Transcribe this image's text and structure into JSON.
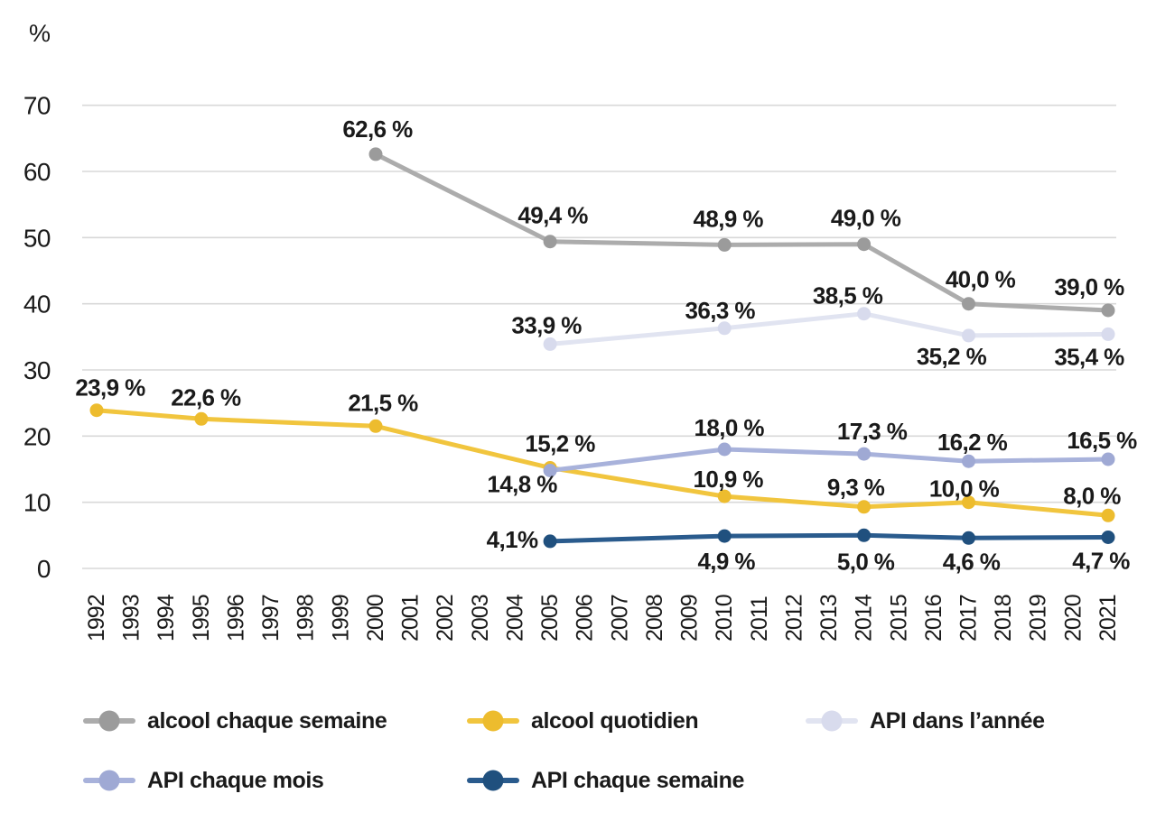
{
  "figure": {
    "background": "#FFFFFF",
    "text_color": "#1A1A1A",
    "grid_color": "#D8D8D8"
  },
  "chart_data": {
    "type": "line",
    "title": "",
    "ylabel": "%",
    "xlabel": "",
    "ylim": [
      0,
      77
    ],
    "yticks": [
      0,
      10,
      20,
      30,
      40,
      50,
      60,
      70
    ],
    "grid": "horizontal",
    "legend_position": "bottom",
    "x_years": [
      1992,
      1993,
      1994,
      1995,
      1996,
      1997,
      1998,
      1999,
      2000,
      2001,
      2002,
      2003,
      2004,
      2005,
      2006,
      2007,
      2008,
      2009,
      2010,
      2011,
      2012,
      2013,
      2014,
      2015,
      2016,
      2017,
      2018,
      2019,
      2020,
      2021
    ],
    "series": [
      {
        "name": "alcool chaque semaine",
        "line_color": "#ACACAC",
        "dot_color": "#9B9B9B",
        "points": [
          {
            "year": 2000,
            "value": 62.6,
            "label": "62,6 %",
            "label_dx": 2,
            "label_dy": -28
          },
          {
            "year": 2005,
            "value": 49.4,
            "label": "49,4 %",
            "label_dx": 3,
            "label_dy": -29
          },
          {
            "year": 2010,
            "value": 48.9,
            "label": "48,9 %",
            "label_dx": 4,
            "label_dy": -29
          },
          {
            "year": 2014,
            "value": 49.0,
            "label": "49,0 %",
            "label_dx": 2,
            "label_dy": -29
          },
          {
            "year": 2017,
            "value": 40.0,
            "label": "40,0 %",
            "label_dx": 13,
            "label_dy": -27
          },
          {
            "year": 2021,
            "value": 39.0,
            "label": "39,0 %",
            "label_dx": -21,
            "label_dy": -26
          }
        ]
      },
      {
        "name": "alcool quotidien",
        "line_color": "#F1C53E",
        "dot_color": "#EDBC2E",
        "points": [
          {
            "year": 1992,
            "value": 23.9,
            "label": "23,9 %",
            "label_dx": 15,
            "label_dy": -25
          },
          {
            "year": 1995,
            "value": 22.6,
            "label": "22,6 %",
            "label_dx": 5,
            "label_dy": -24
          },
          {
            "year": 2000,
            "value": 21.5,
            "label": "21,5 %",
            "label_dx": 8,
            "label_dy": -26
          },
          {
            "year": 2005,
            "value": 15.2,
            "label": "15,2 %",
            "label_dx": 11,
            "label_dy": -27
          },
          {
            "year": 2010,
            "value": 10.9,
            "label": "10,9 %",
            "label_dx": 4,
            "label_dy": -19
          },
          {
            "year": 2014,
            "value": 9.3,
            "label": "9,3 %",
            "label_dx": -9,
            "label_dy": -22
          },
          {
            "year": 2017,
            "value": 10.0,
            "label": "10,0 %",
            "label_dx": -5,
            "label_dy": -15
          },
          {
            "year": 2021,
            "value": 8.0,
            "label": "8,0 %",
            "label_dx": -18,
            "label_dy": -22
          }
        ]
      },
      {
        "name": "API dans l’année",
        "line_color": "#E1E4F1",
        "dot_color": "#D8DBED",
        "points": [
          {
            "year": 2005,
            "value": 33.9,
            "label": "33,9 %",
            "label_dx": -4,
            "label_dy": -21
          },
          {
            "year": 2010,
            "value": 36.3,
            "label": "36,3 %",
            "label_dx": -5,
            "label_dy": -20
          },
          {
            "year": 2014,
            "value": 38.5,
            "label": "38,5 %",
            "label_dx": -18,
            "label_dy": -20
          },
          {
            "year": 2017,
            "value": 35.2,
            "label": "35,2 %",
            "label_dx": -19,
            "label_dy": 23
          },
          {
            "year": 2021,
            "value": 35.4,
            "label": "35,4 %",
            "label_dx": -21,
            "label_dy": 25
          }
        ]
      },
      {
        "name": "API chaque mois",
        "line_color": "#A8B2DB",
        "dot_color": "#9FA9D4",
        "points": [
          {
            "year": 2005,
            "value": 14.8,
            "label": "14,8 %",
            "label_dx": -31,
            "label_dy": 15
          },
          {
            "year": 2010,
            "value": 18.0,
            "label": "18,0 %",
            "label_dx": 5,
            "label_dy": -24
          },
          {
            "year": 2014,
            "value": 17.3,
            "label": "17,3 %",
            "label_dx": 9,
            "label_dy": -25
          },
          {
            "year": 2017,
            "value": 16.2,
            "label": "16,2 %",
            "label_dx": 4,
            "label_dy": -21
          },
          {
            "year": 2021,
            "value": 16.5,
            "label": "16,5 %",
            "label_dx": -7,
            "label_dy": -21
          }
        ]
      },
      {
        "name": "API chaque semaine",
        "line_color": "#2A5B8D",
        "dot_color": "#20507E",
        "points": [
          {
            "year": 2005,
            "value": 4.1,
            "label": "4,1%",
            "label_dx": -42,
            "label_dy": -2
          },
          {
            "year": 2010,
            "value": 4.9,
            "label": "4,9 %",
            "label_dx": 2,
            "label_dy": 28
          },
          {
            "year": 2014,
            "value": 5.0,
            "label": "5,0 %",
            "label_dx": 2,
            "label_dy": 29
          },
          {
            "year": 2017,
            "value": 4.6,
            "label": "4,6 %",
            "label_dx": 3,
            "label_dy": 26
          },
          {
            "year": 2021,
            "value": 4.7,
            "label": "4,7 %",
            "label_dx": -8,
            "label_dy": 26
          }
        ]
      }
    ]
  }
}
